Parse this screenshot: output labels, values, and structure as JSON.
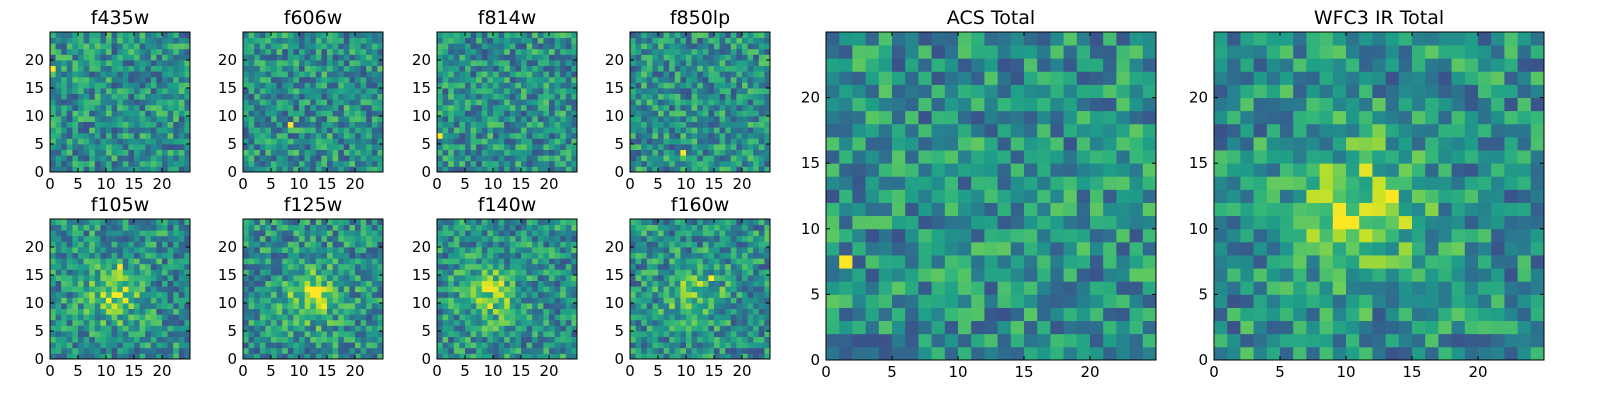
{
  "chart_data": [
    {
      "type": "heatmap",
      "title": "f435w",
      "xlim": [
        0,
        25
      ],
      "ylim": [
        0,
        25
      ],
      "xticks": [
        "0",
        "5",
        "10",
        "15",
        "20"
      ],
      "yticks": [
        "0",
        "5",
        "10",
        "15",
        "20"
      ],
      "colormap": "viridis",
      "grid": false,
      "peak": [
        0,
        18
      ],
      "blob": null,
      "contrast": 0.55,
      "seed": 11
    },
    {
      "type": "heatmap",
      "title": "f606w",
      "xlim": [
        0,
        25
      ],
      "ylim": [
        0,
        25
      ],
      "xticks": [
        "0",
        "5",
        "10",
        "15",
        "20"
      ],
      "yticks": [
        "0",
        "5",
        "10",
        "15",
        "20"
      ],
      "colormap": "viridis",
      "grid": false,
      "peak": [
        8,
        8
      ],
      "blob": null,
      "contrast": 0.75,
      "seed": 23
    },
    {
      "type": "heatmap",
      "title": "f814w",
      "xlim": [
        0,
        25
      ],
      "ylim": [
        0,
        25
      ],
      "xticks": [
        "0",
        "5",
        "10",
        "15",
        "20"
      ],
      "yticks": [
        "0",
        "5",
        "10",
        "15",
        "20"
      ],
      "colormap": "viridis",
      "grid": false,
      "peak": [
        0,
        6
      ],
      "blob": null,
      "contrast": 0.45,
      "seed": 37
    },
    {
      "type": "heatmap",
      "title": "f850lp",
      "xlim": [
        0,
        25
      ],
      "ylim": [
        0,
        25
      ],
      "xticks": [
        "0",
        "5",
        "10",
        "15",
        "20"
      ],
      "yticks": [
        "0",
        "5",
        "10",
        "15",
        "20"
      ],
      "colormap": "viridis",
      "grid": false,
      "peak": [
        9,
        3
      ],
      "blob": null,
      "contrast": 0.4,
      "seed": 41
    },
    {
      "type": "heatmap",
      "title": "f105w",
      "xlim": [
        0,
        25
      ],
      "ylim": [
        0,
        25
      ],
      "xticks": [
        "0",
        "5",
        "10",
        "15",
        "20"
      ],
      "yticks": [
        "0",
        "5",
        "10",
        "15",
        "20"
      ],
      "colormap": "viridis",
      "grid": false,
      "peak": [
        12,
        16
      ],
      "blob": [
        11,
        11
      ],
      "contrast": 0.7,
      "seed": 53
    },
    {
      "type": "heatmap",
      "title": "f125w",
      "xlim": [
        0,
        25
      ],
      "ylim": [
        0,
        25
      ],
      "xticks": [
        "0",
        "5",
        "10",
        "15",
        "20"
      ],
      "yticks": [
        "0",
        "5",
        "10",
        "15",
        "20"
      ],
      "colormap": "viridis",
      "grid": false,
      "peak": [
        13,
        12
      ],
      "blob": [
        12,
        11
      ],
      "contrast": 0.75,
      "seed": 67
    },
    {
      "type": "heatmap",
      "title": "f140w",
      "xlim": [
        0,
        25
      ],
      "ylim": [
        0,
        25
      ],
      "xticks": [
        "0",
        "5",
        "10",
        "15",
        "20"
      ],
      "yticks": [
        "0",
        "5",
        "10",
        "15",
        "20"
      ],
      "colormap": "viridis",
      "grid": false,
      "peak": [
        9,
        12
      ],
      "blob": [
        9,
        11
      ],
      "contrast": 0.7,
      "seed": 71
    },
    {
      "type": "heatmap",
      "title": "f160w",
      "xlim": [
        0,
        25
      ],
      "ylim": [
        0,
        25
      ],
      "xticks": [
        "0",
        "5",
        "10",
        "15",
        "20"
      ],
      "yticks": [
        "0",
        "5",
        "10",
        "15",
        "20"
      ],
      "colormap": "viridis",
      "grid": false,
      "peak": [
        14,
        14
      ],
      "blob": [
        11,
        11
      ],
      "contrast": 0.6,
      "seed": 83
    },
    {
      "type": "heatmap",
      "title": "ACS Total",
      "xlim": [
        0,
        25
      ],
      "ylim": [
        0,
        25
      ],
      "xticks": [
        "0",
        "5",
        "10",
        "15",
        "20"
      ],
      "yticks": [
        "0",
        "5",
        "10",
        "15",
        "20"
      ],
      "colormap": "viridis",
      "grid": false,
      "peak": [
        1,
        7
      ],
      "blob": null,
      "contrast": 0.55,
      "seed": 97
    },
    {
      "type": "heatmap",
      "title": "WFC3 IR Total",
      "xlim": [
        0,
        25
      ],
      "ylim": [
        0,
        25
      ],
      "xticks": [
        "0",
        "5",
        "10",
        "15",
        "20"
      ],
      "yticks": [
        "0",
        "5",
        "10",
        "15",
        "20"
      ],
      "colormap": "viridis",
      "grid": false,
      "peak": [
        13,
        12
      ],
      "blob": [
        11,
        11
      ],
      "contrast": 0.8,
      "seed": 101
    }
  ]
}
